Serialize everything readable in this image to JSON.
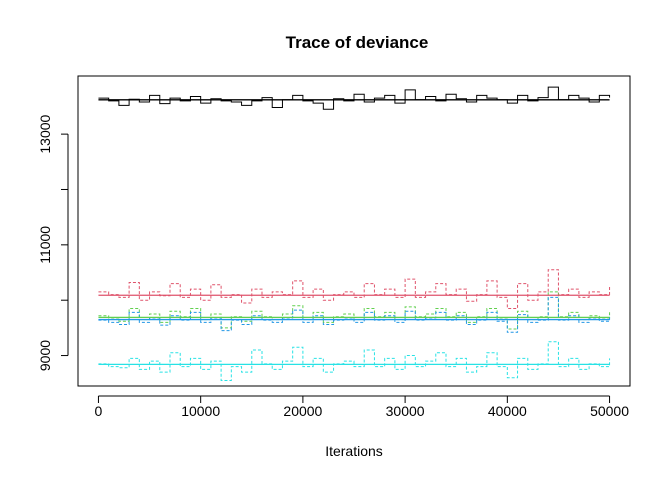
{
  "chart_data": {
    "type": "line",
    "title": "Trace of deviance",
    "xlabel": "Iterations",
    "ylabel": "",
    "xlim": [
      -2000,
      52000
    ],
    "ylim": [
      8450,
      14050
    ],
    "x_ticks": [
      0,
      10000,
      20000,
      30000,
      40000,
      50000
    ],
    "x_tick_labels": [
      "0",
      "10000",
      "20000",
      "30000",
      "40000",
      "50000"
    ],
    "y_ticks": [
      9000,
      11000,
      13000
    ],
    "y_tick_labels": [
      "9000",
      "11000",
      "13000"
    ],
    "grid": false,
    "legend": "none",
    "x": [
      0,
      1000,
      2000,
      3000,
      4000,
      5000,
      6000,
      7000,
      8000,
      9000,
      10000,
      11000,
      12000,
      13000,
      14000,
      15000,
      16000,
      17000,
      18000,
      19000,
      20000,
      21000,
      22000,
      23000,
      24000,
      25000,
      26000,
      27000,
      28000,
      29000,
      30000,
      31000,
      32000,
      33000,
      34000,
      35000,
      36000,
      37000,
      38000,
      39000,
      40000,
      41000,
      42000,
      43000,
      44000,
      45000,
      46000,
      47000,
      48000,
      49000,
      50000
    ],
    "series": [
      {
        "color": "#000000",
        "dash": "solid",
        "values": [
          13650,
          13600,
          13520,
          13630,
          13580,
          13700,
          13550,
          13650,
          13600,
          13680,
          13560,
          13640,
          13600,
          13580,
          13520,
          13600,
          13660,
          13480,
          13620,
          13700,
          13600,
          13560,
          13450,
          13640,
          13600,
          13720,
          13580,
          13650,
          13700,
          13560,
          13800,
          13620,
          13680,
          13600,
          13720,
          13640,
          13580,
          13700,
          13650,
          13620,
          13560,
          13700,
          13600,
          13660,
          13850,
          13620,
          13700,
          13650,
          13580,
          13700,
          13660
        ],
        "mean": 13620
      },
      {
        "color": "#DF536B",
        "dash": "dashed",
        "values": [
          10150,
          10100,
          10050,
          10320,
          10000,
          10150,
          10080,
          10300,
          10050,
          10200,
          10000,
          10280,
          10050,
          10100,
          9950,
          10200,
          10050,
          10150,
          10100,
          10350,
          10050,
          10200,
          10000,
          10100,
          10150,
          10050,
          10300,
          10100,
          10200,
          10050,
          10380,
          10050,
          10150,
          10300,
          10100,
          10200,
          9980,
          10100,
          10350,
          10050,
          9850,
          10300,
          10000,
          10150,
          10550,
          10100,
          10200,
          10050,
          10150,
          10100,
          10250
        ],
        "mean": 10090
      },
      {
        "color": "#61D04F",
        "dash": "dashed",
        "values": [
          9720,
          9680,
          9620,
          9850,
          9650,
          9750,
          9600,
          9800,
          9700,
          9850,
          9650,
          9750,
          9500,
          9700,
          9620,
          9800,
          9700,
          9650,
          9750,
          9900,
          9650,
          9780,
          9600,
          9700,
          9750,
          9650,
          9850,
          9700,
          9780,
          9650,
          9880,
          9700,
          9750,
          9850,
          9700,
          9780,
          9600,
          9700,
          9850,
          9680,
          9480,
          9800,
          9650,
          9700,
          10150,
          9700,
          9780,
          9650,
          9720,
          9680,
          9800
        ],
        "mean": 9690
      },
      {
        "color": "#2297E6",
        "dash": "dashed",
        "values": [
          9640,
          9600,
          9560,
          9780,
          9600,
          9680,
          9550,
          9720,
          9640,
          9780,
          9600,
          9680,
          9450,
          9640,
          9560,
          9720,
          9640,
          9600,
          9680,
          9820,
          9600,
          9720,
          9560,
          9640,
          9680,
          9600,
          9780,
          9640,
          9720,
          9600,
          9800,
          9640,
          9680,
          9780,
          9640,
          9720,
          9560,
          9640,
          9780,
          9620,
          9420,
          9740,
          9600,
          9640,
          10050,
          9640,
          9720,
          9600,
          9660,
          9620,
          9740
        ],
        "mean": 9650
      },
      {
        "color": "#28E2E5",
        "dash": "dashed",
        "values": [
          8850,
          8800,
          8780,
          8950,
          8750,
          8900,
          8700,
          9050,
          8800,
          8950,
          8750,
          8900,
          8550,
          8800,
          8700,
          9100,
          8850,
          8750,
          8900,
          9150,
          8800,
          8950,
          8700,
          8850,
          8900,
          8800,
          9100,
          8800,
          8950,
          8750,
          9000,
          8800,
          8900,
          9050,
          8800,
          8950,
          8700,
          8800,
          9050,
          8800,
          8600,
          8950,
          8750,
          8850,
          9250,
          8800,
          8950,
          8750,
          8850,
          8800,
          8950
        ],
        "mean": 8840
      }
    ]
  }
}
